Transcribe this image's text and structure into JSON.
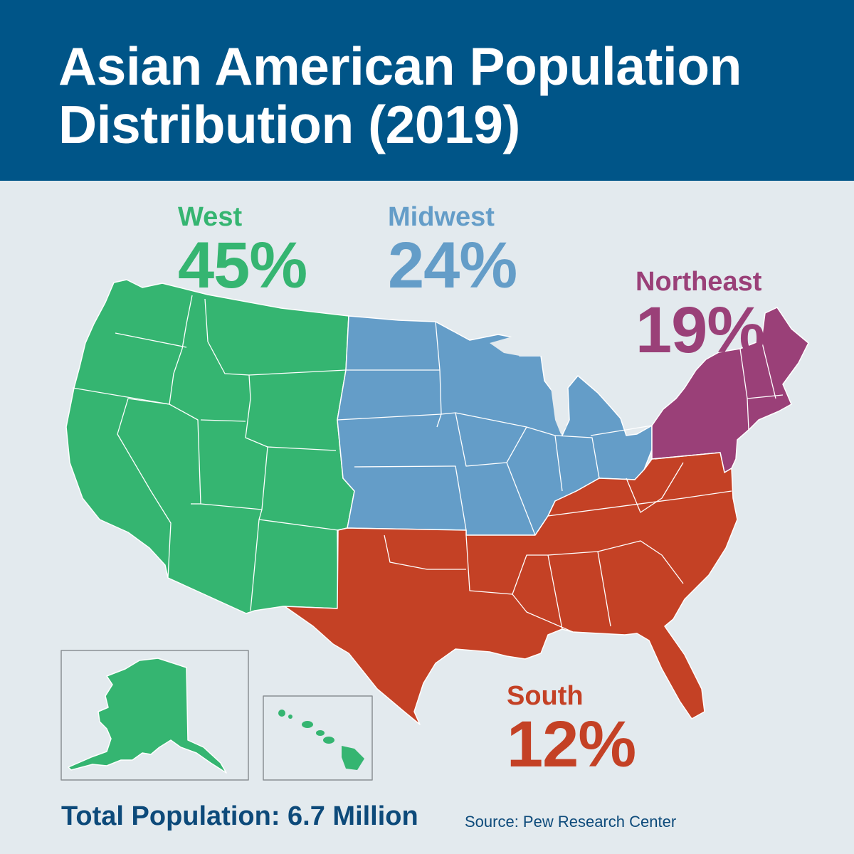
{
  "title_line1": "Asian American Population",
  "title_line2": "Distribution (2019)",
  "colors": {
    "header": "#005588",
    "background": "#e3eaee",
    "West": "#35b571",
    "Midwest": "#649dc8",
    "Northeast": "#9a4078",
    "South": "#c44125"
  },
  "regions": [
    {
      "name": "West",
      "percent": "45%",
      "value": 45
    },
    {
      "name": "Midwest",
      "percent": "24%",
      "value": 24
    },
    {
      "name": "Northeast",
      "percent": "19%",
      "value": 19
    },
    {
      "name": "South",
      "percent": "12%",
      "value": 12
    }
  ],
  "insets": [
    "Alaska",
    "Hawaii"
  ],
  "footer": {
    "total": "Total Population: 6.7 Million",
    "source": "Source: Pew Research Center"
  }
}
